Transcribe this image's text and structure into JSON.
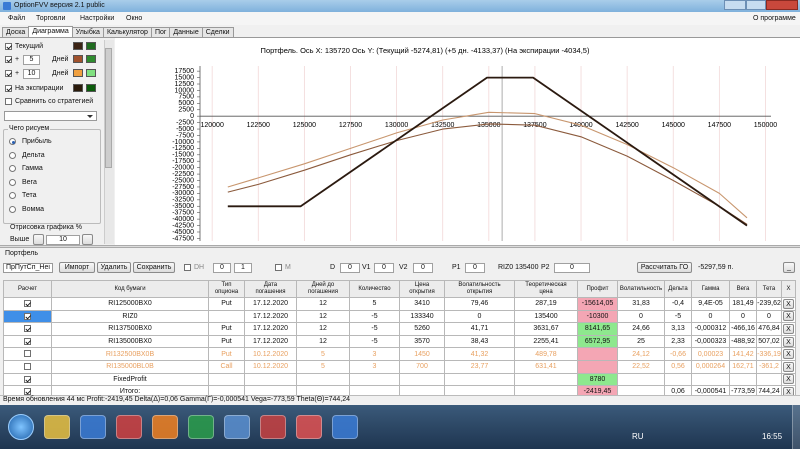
{
  "window": {
    "title": "OptionFVV версия 2.1 public"
  },
  "menu": {
    "items": [
      "Файл",
      "Торговли",
      "Настройки",
      "Окно"
    ],
    "about": "О программе"
  },
  "tabs": {
    "items": [
      "Доска",
      "Диаграмма",
      "Улыбка",
      "Калькулятор",
      "Пог",
      "Данные",
      "Сделки"
    ],
    "active": 1
  },
  "left_panel": {
    "curves": [
      {
        "checked": true,
        "label": "Текущий",
        "colors": [
          "#3b2314",
          "#1f6b1f"
        ]
      },
      {
        "checked": true,
        "prefix": "+",
        "days": "5",
        "label": "Дней",
        "colors": [
          "#a0522d",
          "#2e8b2e"
        ]
      },
      {
        "checked": true,
        "prefix": "+",
        "days": "10",
        "label": "Дней",
        "colors": [
          "#f0a040",
          "#80e080"
        ]
      },
      {
        "checked": true,
        "label": "На экспирации",
        "colors": [
          "#2a1a0a",
          "#0a5a0a"
        ]
      }
    ],
    "compare": {
      "checked": false,
      "label": "Сравнить со стратегией"
    },
    "group_title": "Чего рисуем",
    "options": [
      "Прибыль",
      "Дельта",
      "Гамма",
      "Вега",
      "Тета",
      "Вомма"
    ],
    "selected_option": 0,
    "render_label": "Отрисовка графика %",
    "above": {
      "label": "Выше",
      "value": "10"
    }
  },
  "chart": {
    "title": "Портфель. Ось X: 135720 Ось Y:  (Текущий -5274,81)  (+5 дн. -4133,37)  (На экспирации -4034,5)",
    "xlim": [
      119340,
      150300
    ],
    "ylim": [
      -48500,
      19500
    ],
    "xticks": [
      120000,
      122500,
      125000,
      127500,
      130000,
      132500,
      135000,
      137500,
      140000,
      142500,
      145000,
      147500,
      150000
    ],
    "yticks": [
      17500,
      15000,
      12500,
      10000,
      7500,
      5000,
      2500,
      0,
      -2500,
      -5000,
      -7500,
      -10000,
      -12500,
      -15000,
      -17500,
      -20000,
      -22500,
      -25000,
      -27500,
      -30000,
      -32500,
      -35000,
      -37500,
      -40000,
      -42500,
      -45000,
      -47500
    ],
    "grid": true,
    "cursor_x": 135720,
    "series": [
      {
        "color": "#c8966e",
        "x": [
          120850,
          122500,
          125000,
          127500,
          130000,
          132500,
          135000,
          137500,
          140000,
          142500,
          145000,
          147500,
          149000
        ],
        "values": [
          -27500,
          -24000,
          -18500,
          -12500,
          -6500,
          -1500,
          1500,
          1000,
          -3500,
          -11000,
          -20000,
          -30000,
          -39500
        ]
      },
      {
        "color": "#8b5a3c",
        "x": [
          120850,
          122500,
          125000,
          127500,
          130000,
          132500,
          135000,
          137500,
          140000,
          142500,
          145000,
          147500,
          149000
        ],
        "values": [
          -29500,
          -26500,
          -21000,
          -15000,
          -9500,
          -5000,
          -3000,
          -3500,
          -8000,
          -15500,
          -25000,
          -35000,
          -42000
        ]
      },
      {
        "color": "#2b1a10",
        "x": [
          120850,
          124800,
          134900,
          137400,
          149000
        ],
        "values": [
          -35000,
          -35000,
          15000,
          15000,
          -42500
        ]
      }
    ]
  },
  "portfolio": {
    "label": "Портфель",
    "toolbar": {
      "strategy": "ПрПутСп_Неі",
      "buttons": [
        "Импорт",
        "Удалить",
        "Сохранить"
      ],
      "dh": {
        "checked": false,
        "label": "DH"
      },
      "spin1": "0",
      "spin2": "1",
      "m": {
        "checked": false,
        "label": "M"
      },
      "d": {
        "label": "D",
        "value": "0"
      },
      "v1": {
        "label": "V1",
        "value": "0"
      },
      "v2": {
        "label": "V2",
        "value": "0"
      },
      "p1": {
        "label": "P1",
        "value": "0"
      },
      "underlying": "RIZ0 135400",
      "p2": {
        "label": "P2",
        "value": "0"
      },
      "calc": "Рассчитать ГО",
      "margin": "-5297,59 п.",
      "minimize": "_"
    },
    "columns": [
      "Расчет",
      "Код бумаги",
      "Тип\nопциона",
      "Дата\nпогашения",
      "Дней до\nпогашения",
      "Количество",
      "Цена\nоткрытия",
      "Волатильность\nоткрытия",
      "Теоретическая\nцена",
      "Профит",
      "Волатильность",
      "Дельта",
      "Гамма",
      "Вега",
      "Тета",
      "X"
    ],
    "remove_label": "X",
    "rows": [
      {
        "checked": true,
        "selected": false,
        "style": "active",
        "profit_color": "pink",
        "cells": [
          "RI125000BX0",
          "Put",
          "17.12.2020",
          "12",
          "5",
          "3410",
          "79,46",
          "287,19",
          "-15614,05",
          "31,83",
          "-0,4",
          "9,4E-05",
          "181,49",
          "-239,62"
        ]
      },
      {
        "checked": true,
        "selected": true,
        "style": "active",
        "profit_color": "pink",
        "cells": [
          "RIZ0",
          null,
          "17.12.2020",
          "12",
          "-5",
          "133340",
          "0",
          "135400",
          "-10300",
          "0",
          "-5",
          "0",
          "0",
          "0"
        ]
      },
      {
        "checked": true,
        "selected": false,
        "style": "active",
        "profit_color": "green",
        "cells": [
          "RI137500BX0",
          "Put",
          "17.12.2020",
          "12",
          "-5",
          "5260",
          "41,71",
          "3631,67",
          "8141,65",
          "24,66",
          "3,13",
          "-0,000312",
          "-466,16",
          "476,84"
        ]
      },
      {
        "checked": true,
        "selected": false,
        "style": "active",
        "profit_color": "green",
        "cells": [
          "RI135000BX0",
          "Put",
          "17.12.2020",
          "12",
          "-5",
          "3570",
          "38,43",
          "2255,41",
          "6572,95",
          "25",
          "2,33",
          "-0,000323",
          "-488,92",
          "507,02"
        ]
      },
      {
        "checked": false,
        "selected": false,
        "style": "inactive",
        "profit_color": "pink",
        "cells": [
          "RI132500BX0B",
          "Put",
          "10.12.2020",
          "5",
          "3",
          "1450",
          "41,32",
          "489,78",
          null,
          "24,12",
          "-0,66",
          "0,00023",
          "141,42",
          "-336,19"
        ]
      },
      {
        "checked": false,
        "selected": false,
        "style": "inactive",
        "profit_color": "pink",
        "cells": [
          "RI135000BL0B",
          "Call",
          "10.12.2020",
          "5",
          "3",
          "700",
          "23,77",
          "631,41",
          null,
          "22,52",
          "0,56",
          "0,000264",
          "162,71",
          "-361,2"
        ]
      },
      {
        "checked": true,
        "selected": false,
        "style": "active",
        "profit_color": "green",
        "cells": [
          "FixedProfit",
          null,
          null,
          null,
          null,
          null,
          null,
          null,
          "8780",
          null,
          null,
          null,
          null,
          null
        ]
      },
      {
        "checked": true,
        "selected": false,
        "style": "active",
        "profit_color": "pink",
        "cells": [
          "Итого:",
          null,
          null,
          null,
          null,
          null,
          null,
          null,
          "-2419,45",
          null,
          "0,06",
          "-0,000541",
          "-773,59",
          "744,24"
        ]
      }
    ]
  },
  "status": "Время обновления 44 мс  Profit:-2419,45 Delta(Δ)=0,06 Gamma(Γ)=-0,000541 Vega=-773,59 Theta(Θ)=744,24",
  "taskbar": {
    "lang": "RU",
    "time": "16:55"
  }
}
